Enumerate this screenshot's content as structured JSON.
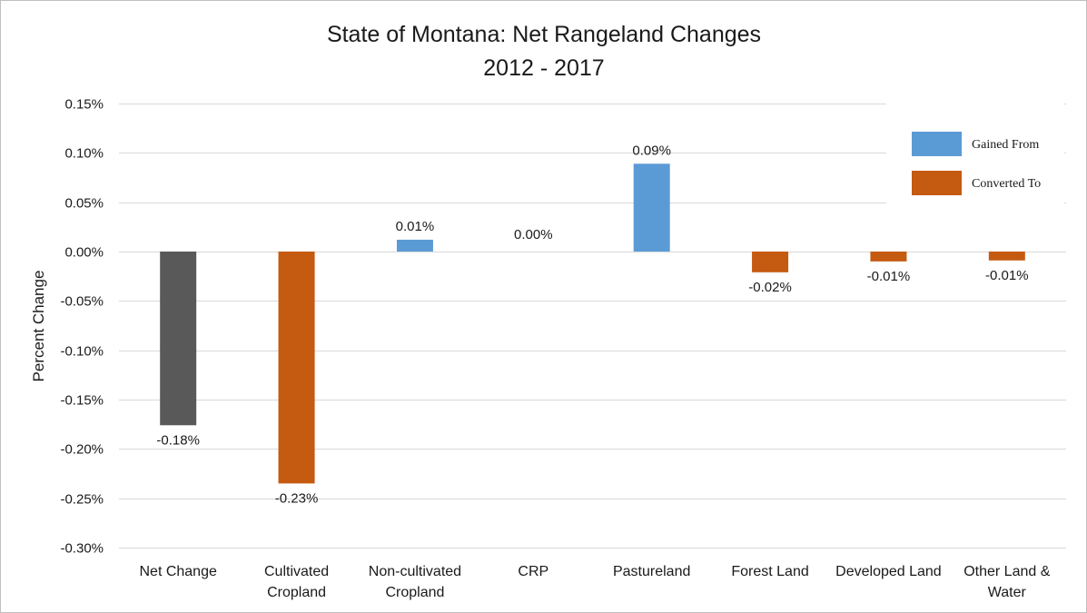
{
  "chart_data": {
    "type": "bar",
    "title": "State of Montana: Net Rangeland Changes",
    "subtitle": "2012 - 2017",
    "xlabel": "",
    "ylabel": "Percent Change",
    "ylim": [
      -0.3,
      0.15
    ],
    "yticks": [
      0.15,
      0.1,
      0.05,
      0.0,
      -0.05,
      -0.1,
      -0.15,
      -0.2,
      -0.25,
      -0.3
    ],
    "ytick_labels": [
      "0.15%",
      "0.10%",
      "0.05%",
      "0.00%",
      "-0.05%",
      "-0.10%",
      "-0.15%",
      "-0.20%",
      "-0.25%",
      "-0.30%"
    ],
    "grid": true,
    "legend_position": "top-right",
    "categories": [
      [
        "Net Change"
      ],
      [
        "Cultivated",
        "Cropland"
      ],
      [
        "Non-cultivated",
        "Cropland"
      ],
      [
        "CRP"
      ],
      [
        "Pastureland"
      ],
      [
        "Forest Land"
      ],
      [
        "Developed Land"
      ],
      [
        "Other Land &",
        "Water"
      ]
    ],
    "values": [
      -0.176,
      -0.235,
      0.012,
      0.0,
      0.089,
      -0.021,
      -0.01,
      -0.009
    ],
    "data_labels": [
      "-0.18%",
      "-0.23%",
      "0.01%",
      "0.00%",
      "0.09%",
      "-0.02%",
      "-0.01%",
      "-0.01%"
    ],
    "bar_groups": [
      "net",
      "converted",
      "gained",
      "gained",
      "gained",
      "converted",
      "converted",
      "converted"
    ],
    "legend": [
      {
        "name": "Gained From",
        "group": "gained"
      },
      {
        "name": "Converted To",
        "group": "converted"
      }
    ],
    "colors": {
      "net": "#595959",
      "gained": "#5b9bd5",
      "converted": "#c55a11"
    }
  }
}
